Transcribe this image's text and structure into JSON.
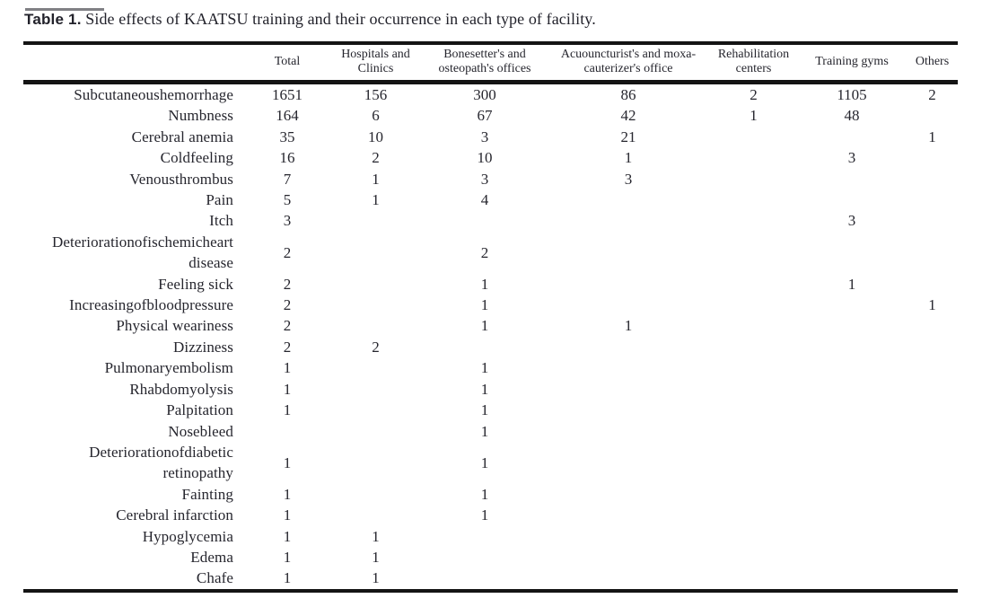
{
  "title": {
    "label": "Table 1.",
    "text": " Side effects of KAATSU training and their occurrence in each type of facility."
  },
  "table": {
    "row_header": "",
    "columns": [
      "Total",
      "Hospitals and Clinics",
      "Bonesetter's and osteopath's offices",
      "Acuouncturist's and moxa-cauterizer's office",
      "Rehabilitation centers",
      "Training gyms",
      "Others"
    ],
    "rows": [
      {
        "label": "Subcutaneoushemorrhage",
        "values": [
          "1651",
          "156",
          "300",
          "86",
          "2",
          "1105",
          "2"
        ]
      },
      {
        "label": "Numbness",
        "values": [
          "164",
          "6",
          "67",
          "42",
          "1",
          "48",
          ""
        ]
      },
      {
        "label": "Cerebral anemia",
        "values": [
          "35",
          "10",
          "3",
          "21",
          "",
          "",
          "1"
        ]
      },
      {
        "label": "Coldfeeling",
        "values": [
          "16",
          "2",
          "10",
          "1",
          "",
          "3",
          ""
        ]
      },
      {
        "label": "Venousthrombus",
        "values": [
          "7",
          "1",
          "3",
          "3",
          "",
          "",
          ""
        ]
      },
      {
        "label": "Pain",
        "values": [
          "5",
          "1",
          "4",
          "",
          "",
          "",
          ""
        ]
      },
      {
        "label": "Itch",
        "values": [
          "3",
          "",
          "",
          "",
          "",
          "3",
          ""
        ]
      },
      {
        "label": "Deteriorationofischemicheart disease",
        "values": [
          "2",
          "",
          "2",
          "",
          "",
          "",
          ""
        ]
      },
      {
        "label": "Feeling sick",
        "values": [
          "2",
          "",
          "1",
          "",
          "",
          "1",
          ""
        ]
      },
      {
        "label": "Increasingofbloodpressure",
        "values": [
          "2",
          "",
          "1",
          "",
          "",
          "",
          "1"
        ]
      },
      {
        "label": "Physical weariness",
        "values": [
          "2",
          "",
          "1",
          "1",
          "",
          "",
          ""
        ]
      },
      {
        "label": "Dizziness",
        "values": [
          "2",
          "2",
          "",
          "",
          "",
          "",
          ""
        ]
      },
      {
        "label": "Pulmonaryembolism",
        "values": [
          "1",
          "",
          "1",
          "",
          "",
          "",
          ""
        ]
      },
      {
        "label": "Rhabdomyolysis",
        "values": [
          "1",
          "",
          "1",
          "",
          "",
          "",
          ""
        ]
      },
      {
        "label": "Palpitation",
        "values": [
          "1",
          "",
          "1",
          "",
          "",
          "",
          ""
        ]
      },
      {
        "label": "Nosebleed",
        "values": [
          "",
          "",
          "1",
          "",
          "",
          "",
          ""
        ]
      },
      {
        "label": "Deteriorationofdiabetic retinopathy",
        "values": [
          "1",
          "",
          "1",
          "",
          "",
          "",
          ""
        ]
      },
      {
        "label": "Fainting",
        "values": [
          "1",
          "",
          "1",
          "",
          "",
          "",
          ""
        ]
      },
      {
        "label": "Cerebral infarction",
        "values": [
          "1",
          "",
          "1",
          "",
          "",
          "",
          ""
        ]
      },
      {
        "label": "Hypoglycemia",
        "values": [
          "1",
          "1",
          "",
          "",
          "",
          "",
          ""
        ]
      },
      {
        "label": "Edema",
        "values": [
          "1",
          "1",
          "",
          "",
          "",
          "",
          ""
        ]
      },
      {
        "label": "Chafe",
        "values": [
          "1",
          "1",
          "",
          "",
          "",
          "",
          ""
        ]
      }
    ]
  },
  "colors": {
    "background": "#ffffff",
    "text": "#26262e",
    "rule": "#141414"
  }
}
